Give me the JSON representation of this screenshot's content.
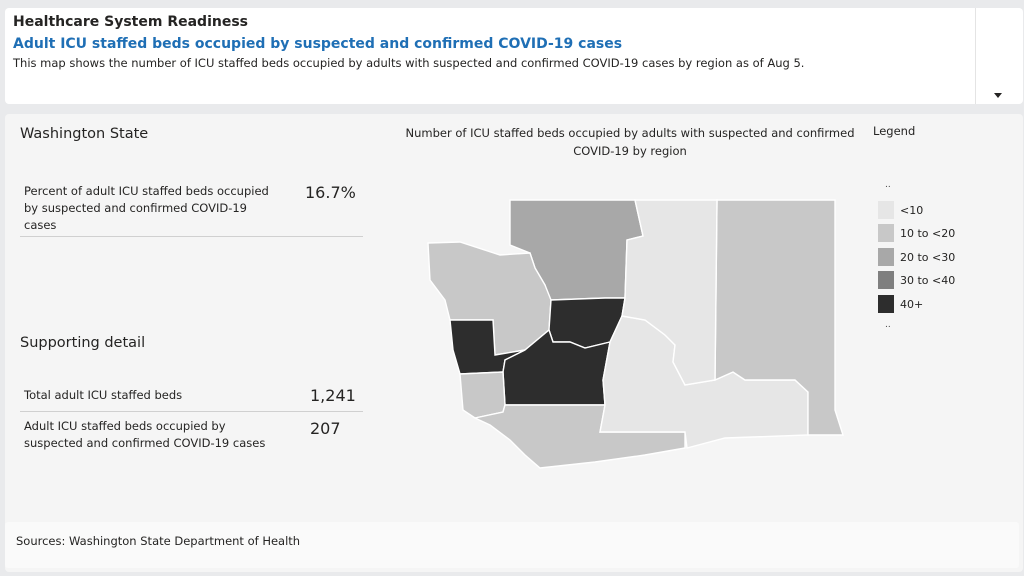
{
  "header": {
    "title": "Healthcare System Readiness",
    "subtitle": "Adult ICU staffed beds occupied by suspected and confirmed COVID-19 cases",
    "description": "This map shows the number of ICU staffed beds occupied by adults with suspected and confirmed COVID-19 cases by region as of Aug 5.",
    "dropdown_icon": "chevron-down-icon"
  },
  "state_panel": {
    "title": "Washington State",
    "kpi": {
      "label": "Percent of adult ICU staffed beds occupied by suspected and confirmed COVID-19 cases",
      "value": "16.7%"
    },
    "supporting": {
      "title": "Supporting detail",
      "rows": [
        {
          "label": "Total adult ICU staffed beds",
          "value": "1,241"
        },
        {
          "label": "Adult ICU staffed beds occupied by suspected and confirmed COVID-19 cases",
          "value": "207"
        }
      ]
    }
  },
  "map": {
    "title": "Number of ICU staffed beds occupied by adults with suspected and confirmed COVID-19 by region",
    "regions": [
      {
        "id": "north",
        "category": "20 to <30"
      },
      {
        "id": "olympic",
        "category": "10 to <20"
      },
      {
        "id": "northwest-coast",
        "category": "40+"
      },
      {
        "id": "north-central",
        "category": "40+"
      },
      {
        "id": "south-central-west",
        "category": "40+"
      },
      {
        "id": "east",
        "category": "10 to <20"
      },
      {
        "id": "southwest",
        "category": "10 to <20"
      },
      {
        "id": "south-coast",
        "category": "10 to <20"
      },
      {
        "id": "central",
        "category": "<10"
      },
      {
        "id": "northeast",
        "category": "<10"
      },
      {
        "id": "southeast",
        "category": "<10"
      }
    ]
  },
  "legend": {
    "title": "Legend",
    "top_dots": "..",
    "bottom_dots": "..",
    "items": [
      {
        "label": "<10",
        "color": "#e6e6e6"
      },
      {
        "label": "10 to <20",
        "color": "#c8c8c8"
      },
      {
        "label": "20 to <30",
        "color": "#a8a8a8"
      },
      {
        "label": "30 to <40",
        "color": "#7f7f7f"
      },
      {
        "label": "40+",
        "color": "#2d2d2d"
      }
    ]
  },
  "sources": {
    "text": "Sources: Washington State Department of Health"
  }
}
